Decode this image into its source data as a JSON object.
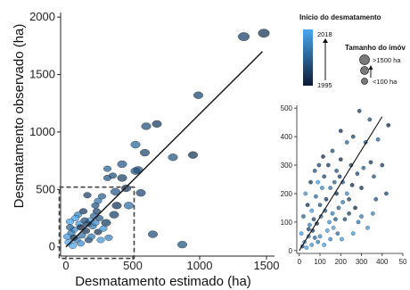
{
  "chart_data": [
    {
      "type": "scatter",
      "title": "",
      "xlabel": "Desmatamento estimado (ha)",
      "ylabel": "Desmatamento observado (ha)",
      "xlim": [
        -40,
        1560
      ],
      "ylim": [
        -80,
        2040
      ],
      "xticks": [
        "0",
        "500",
        "1000",
        "1500"
      ],
      "yticks": [
        "0",
        "500",
        "1000",
        "1500",
        "2000"
      ],
      "fit_line": [
        [
          0,
          0
        ],
        [
          1470,
          1700
        ]
      ],
      "zoom_box": {
        "x": [
          -50,
          510
        ],
        "y": [
          -100,
          520
        ]
      },
      "points": [
        {
          "x": 1330,
          "y": 1830,
          "year": 2002,
          "size": "large"
        },
        {
          "x": 1480,
          "y": 1860,
          "year": 2000,
          "size": "large"
        },
        {
          "x": 990,
          "y": 1320,
          "year": 2003,
          "size": "mid"
        },
        {
          "x": 600,
          "y": 1050,
          "year": 2004,
          "size": "mid"
        },
        {
          "x": 680,
          "y": 1070,
          "year": 2001,
          "size": "mid"
        },
        {
          "x": 950,
          "y": 800,
          "year": 2000,
          "size": "mid"
        },
        {
          "x": 800,
          "y": 780,
          "year": 2005,
          "size": "mid"
        },
        {
          "x": 520,
          "y": 890,
          "year": 2008,
          "size": "mid"
        },
        {
          "x": 590,
          "y": 820,
          "year": 2003,
          "size": "mid"
        },
        {
          "x": 540,
          "y": 670,
          "year": 2006,
          "size": "mid"
        },
        {
          "x": 520,
          "y": 660,
          "year": 2004,
          "size": "mid"
        },
        {
          "x": 420,
          "y": 720,
          "year": 2006,
          "size": "mid"
        },
        {
          "x": 310,
          "y": 680,
          "year": 2007,
          "size": "small"
        },
        {
          "x": 310,
          "y": 600,
          "year": 2005,
          "size": "small"
        },
        {
          "x": 350,
          "y": 620,
          "year": 2004,
          "size": "small"
        },
        {
          "x": 420,
          "y": 600,
          "year": 2002,
          "size": "mid"
        },
        {
          "x": 450,
          "y": 510,
          "year": 2001,
          "size": "mid"
        },
        {
          "x": 560,
          "y": 470,
          "year": 2003,
          "size": "mid"
        },
        {
          "x": 370,
          "y": 480,
          "year": 2006,
          "size": "mid"
        },
        {
          "x": 380,
          "y": 360,
          "year": 2000,
          "size": "mid"
        },
        {
          "x": 470,
          "y": 360,
          "year": 2009,
          "size": "mid"
        },
        {
          "x": 360,
          "y": 280,
          "year": 2002,
          "size": "mid"
        },
        {
          "x": 270,
          "y": 440,
          "year": 2007,
          "size": "small"
        },
        {
          "x": 240,
          "y": 400,
          "year": 2010,
          "size": "small"
        },
        {
          "x": 220,
          "y": 360,
          "year": 2005,
          "size": "small"
        },
        {
          "x": 230,
          "y": 310,
          "year": 2003,
          "size": "small"
        },
        {
          "x": 300,
          "y": 210,
          "year": 2001,
          "size": "mid"
        },
        {
          "x": 320,
          "y": 80,
          "year": 2012,
          "size": "small"
        },
        {
          "x": 160,
          "y": 450,
          "year": 2002,
          "size": "small"
        },
        {
          "x": 650,
          "y": 110,
          "year": 2004,
          "size": "mid"
        },
        {
          "x": 870,
          "y": 20,
          "year": 2005,
          "size": "mid"
        },
        {
          "x": 180,
          "y": 230,
          "year": 2016,
          "size": "small"
        },
        {
          "x": 100,
          "y": 200,
          "year": 2015,
          "size": "small"
        },
        {
          "x": 60,
          "y": 150,
          "year": 2014,
          "size": "small"
        },
        {
          "x": 40,
          "y": 120,
          "year": 2011,
          "size": "small"
        },
        {
          "x": 30,
          "y": 220,
          "year": 2017,
          "size": "small"
        },
        {
          "x": 20,
          "y": 40,
          "year": 2018,
          "size": "small"
        },
        {
          "x": 80,
          "y": 60,
          "year": 2013,
          "size": "small"
        },
        {
          "x": 120,
          "y": 100,
          "year": 2009,
          "size": "small"
        },
        {
          "x": 150,
          "y": 140,
          "year": 2000,
          "size": "small"
        },
        {
          "x": 200,
          "y": 180,
          "year": 2010,
          "size": "small"
        },
        {
          "x": 250,
          "y": 250,
          "year": 2006,
          "size": "small"
        },
        {
          "x": 210,
          "y": 270,
          "year": 2008,
          "size": "small"
        },
        {
          "x": 90,
          "y": 280,
          "year": 2012,
          "size": "small"
        },
        {
          "x": 130,
          "y": 310,
          "year": 2001,
          "size": "small"
        },
        {
          "x": 10,
          "y": 90,
          "year": 2016,
          "size": "small"
        },
        {
          "x": 50,
          "y": 10,
          "year": 2018,
          "size": "small"
        },
        {
          "x": 110,
          "y": 30,
          "year": 2014,
          "size": "small"
        },
        {
          "x": 170,
          "y": 60,
          "year": 2003,
          "size": "small"
        },
        {
          "x": 240,
          "y": 130,
          "year": 2000,
          "size": "small"
        },
        {
          "x": 280,
          "y": 160,
          "year": 2015,
          "size": "small"
        },
        {
          "x": 70,
          "y": 250,
          "year": 2017,
          "size": "small"
        },
        {
          "x": 140,
          "y": 230,
          "year": 2004,
          "size": "small"
        },
        {
          "x": 190,
          "y": 90,
          "year": 2011,
          "size": "small"
        },
        {
          "x": 260,
          "y": 60,
          "year": 2016,
          "size": "small"
        },
        {
          "x": 30,
          "y": 170,
          "year": 2007,
          "size": "small"
        },
        {
          "x": 60,
          "y": 80,
          "year": 1999,
          "size": "small"
        },
        {
          "x": 110,
          "y": 170,
          "year": 1998,
          "size": "small"
        },
        {
          "x": 160,
          "y": 200,
          "year": 2002,
          "size": "small"
        },
        {
          "x": 220,
          "y": 210,
          "year": 2013,
          "size": "small"
        }
      ]
    },
    {
      "type": "scatter",
      "title": "",
      "xlabel": "",
      "ylabel": "",
      "xlim": [
        -12,
        500
      ],
      "ylim": [
        -10,
        510
      ],
      "xticks": [
        "0",
        "100",
        "200",
        "300",
        "400",
        "50"
      ],
      "yticks": [
        "0",
        "100",
        "200",
        "300",
        "400",
        "500"
      ],
      "fit_line": [
        [
          0,
          0
        ],
        [
          400,
          470
        ]
      ],
      "points": [
        {
          "x": 290,
          "y": 490,
          "year": 2003
        },
        {
          "x": 430,
          "y": 440,
          "year": 2000
        },
        {
          "x": 340,
          "y": 460,
          "year": 2005
        },
        {
          "x": 320,
          "y": 380,
          "year": 2006
        },
        {
          "x": 380,
          "y": 390,
          "year": 2008
        },
        {
          "x": 400,
          "y": 300,
          "year": 2002
        },
        {
          "x": 360,
          "y": 260,
          "year": 2007
        },
        {
          "x": 420,
          "y": 200,
          "year": 2004
        },
        {
          "x": 300,
          "y": 220,
          "year": 2001
        },
        {
          "x": 250,
          "y": 300,
          "year": 2003
        },
        {
          "x": 230,
          "y": 380,
          "year": 2009
        },
        {
          "x": 200,
          "y": 320,
          "year": 2000
        },
        {
          "x": 180,
          "y": 280,
          "year": 2006
        },
        {
          "x": 160,
          "y": 350,
          "year": 2005
        },
        {
          "x": 140,
          "y": 300,
          "year": 2002
        },
        {
          "x": 120,
          "y": 260,
          "year": 2004
        },
        {
          "x": 150,
          "y": 220,
          "year": 2011
        },
        {
          "x": 180,
          "y": 200,
          "year": 2001
        },
        {
          "x": 210,
          "y": 240,
          "year": 2007
        },
        {
          "x": 240,
          "y": 180,
          "year": 2003
        },
        {
          "x": 270,
          "y": 150,
          "year": 2000
        },
        {
          "x": 300,
          "y": 120,
          "year": 2012
        },
        {
          "x": 330,
          "y": 80,
          "year": 2016
        },
        {
          "x": 260,
          "y": 60,
          "year": 2017
        },
        {
          "x": 220,
          "y": 110,
          "year": 2005
        },
        {
          "x": 190,
          "y": 150,
          "year": 2008
        },
        {
          "x": 160,
          "y": 130,
          "year": 2013
        },
        {
          "x": 130,
          "y": 180,
          "year": 2002
        },
        {
          "x": 110,
          "y": 220,
          "year": 2015
        },
        {
          "x": 90,
          "y": 240,
          "year": 2018
        },
        {
          "x": 100,
          "y": 160,
          "year": 2006
        },
        {
          "x": 80,
          "y": 190,
          "year": 2010
        },
        {
          "x": 60,
          "y": 140,
          "year": 2017
        },
        {
          "x": 70,
          "y": 110,
          "year": 2004
        },
        {
          "x": 50,
          "y": 90,
          "year": 2014
        },
        {
          "x": 40,
          "y": 160,
          "year": 2001
        },
        {
          "x": 30,
          "y": 200,
          "year": 2016
        },
        {
          "x": 20,
          "y": 120,
          "year": 2009
        },
        {
          "x": 10,
          "y": 60,
          "year": 2018
        },
        {
          "x": 25,
          "y": 30,
          "year": 2015
        },
        {
          "x": 45,
          "y": 50,
          "year": 2012
        },
        {
          "x": 65,
          "y": 70,
          "year": 2003
        },
        {
          "x": 85,
          "y": 95,
          "year": 2000
        },
        {
          "x": 105,
          "y": 120,
          "year": 2011
        },
        {
          "x": 125,
          "y": 140,
          "year": 2007
        },
        {
          "x": 145,
          "y": 100,
          "year": 2016
        },
        {
          "x": 165,
          "y": 80,
          "year": 2018
        },
        {
          "x": 185,
          "y": 60,
          "year": 2010
        },
        {
          "x": 205,
          "y": 40,
          "year": 2017
        },
        {
          "x": 150,
          "y": 40,
          "year": 2014
        },
        {
          "x": 120,
          "y": 20,
          "year": 2018
        },
        {
          "x": 90,
          "y": 30,
          "year": 2013
        },
        {
          "x": 60,
          "y": 20,
          "year": 2016
        },
        {
          "x": 35,
          "y": 10,
          "year": 2018
        },
        {
          "x": 15,
          "y": 15,
          "year": 2005
        },
        {
          "x": 55,
          "y": 240,
          "year": 2002
        },
        {
          "x": 75,
          "y": 280,
          "year": 2006
        },
        {
          "x": 95,
          "y": 300,
          "year": 2004
        },
        {
          "x": 115,
          "y": 330,
          "year": 2001
        },
        {
          "x": 170,
          "y": 240,
          "year": 2009
        },
        {
          "x": 195,
          "y": 260,
          "year": 2003
        },
        {
          "x": 230,
          "y": 200,
          "year": 2015
        },
        {
          "x": 255,
          "y": 230,
          "year": 2000
        },
        {
          "x": 280,
          "y": 270,
          "year": 2005
        },
        {
          "x": 310,
          "y": 290,
          "year": 2008
        },
        {
          "x": 345,
          "y": 310,
          "year": 2002
        },
        {
          "x": 370,
          "y": 180,
          "year": 2006
        },
        {
          "x": 355,
          "y": 130,
          "year": 2014
        },
        {
          "x": 285,
          "y": 100,
          "year": 2011
        },
        {
          "x": 240,
          "y": 130,
          "year": 2004
        },
        {
          "x": 210,
          "y": 170,
          "year": 2012
        },
        {
          "x": 175,
          "y": 110,
          "year": 2007
        },
        {
          "x": 135,
          "y": 70,
          "year": 2017
        },
        {
          "x": 100,
          "y": 50,
          "year": 2015
        },
        {
          "x": 75,
          "y": 45,
          "year": 2009
        },
        {
          "x": 45,
          "y": 75,
          "year": 2003
        },
        {
          "x": 200,
          "y": 420,
          "year": 2001
        },
        {
          "x": 260,
          "y": 400,
          "year": 2004
        }
      ]
    }
  ],
  "legend": {
    "color_title": "Início do desmatamento",
    "color_max": "2018",
    "color_min": "1995",
    "color_low": "#0b1a33",
    "color_high": "#4aa8f0",
    "size_title": "Tamanho do imóv",
    "size_labels": [
      ">1500 ha",
      "<100 ha"
    ]
  }
}
